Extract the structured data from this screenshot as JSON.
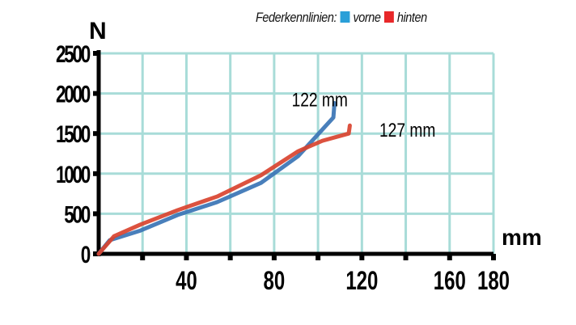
{
  "chart_data": {
    "type": "line",
    "title": "Federkennlinien",
    "xlabel": "mm",
    "ylabel": "N",
    "xlim": [
      0,
      180
    ],
    "ylim": [
      0,
      2500
    ],
    "xticks": [
      40,
      80,
      120,
      160,
      180
    ],
    "yticks": [
      0,
      500,
      1000,
      1500,
      2000,
      2500
    ],
    "grid": true,
    "legend_position": "top-right",
    "series": [
      {
        "name": "vorne",
        "color": "#2a9fd8",
        "line_color": "#3a74b5",
        "x": [
          0,
          5,
          19,
          36,
          54,
          74,
          91,
          102,
          107,
          107.5
        ],
        "y": [
          0,
          170,
          290,
          485,
          645,
          885,
          1220,
          1550,
          1700,
          1880
        ]
      },
      {
        "name": "hinten",
        "color": "#e8282a",
        "line_color": "#d9432f",
        "x": [
          0,
          7,
          19,
          36,
          54,
          74,
          91,
          102,
          114,
          114.5
        ],
        "y": [
          0,
          220,
          365,
          545,
          715,
          980,
          1280,
          1410,
          1500,
          1600
        ]
      }
    ],
    "annotations": [
      {
        "text": "122  mm",
        "x": 88,
        "y": 1880
      },
      {
        "text": "127  mm",
        "x": 128,
        "y": 1500
      }
    ]
  },
  "legend": {
    "title": "Federkennlinien:",
    "items": [
      {
        "label": "vorne",
        "color": "#2a9fd8"
      },
      {
        "label": "hinten",
        "color": "#e8282a"
      }
    ]
  }
}
